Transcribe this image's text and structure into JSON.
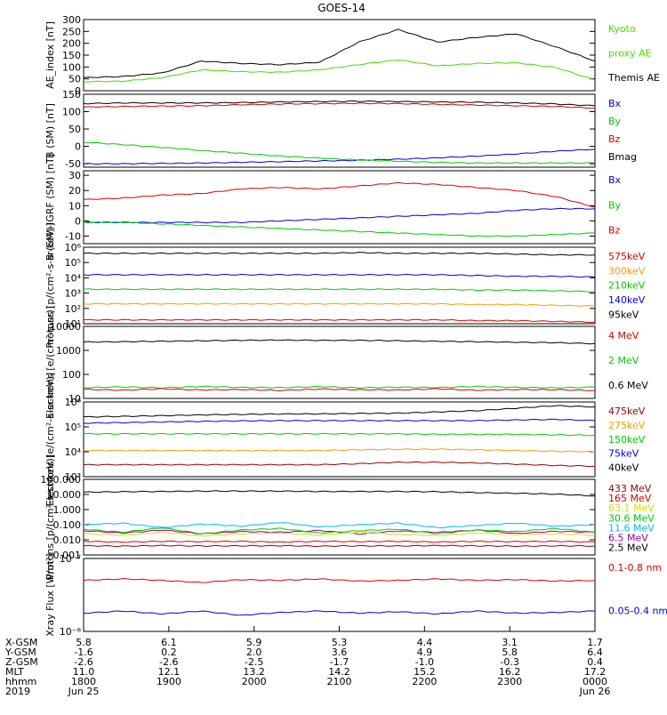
{
  "title": "GOES-14",
  "time_axis": {
    "ticks": [
      "1800",
      "1900",
      "2000",
      "2100",
      "2200",
      "2300",
      "0000"
    ],
    "start_date": "Jun 25",
    "end_date": "Jun 26",
    "year": "2019",
    "row_labels": [
      "X-GSM",
      "Y-GSM",
      "Z-GSM",
      "MLT",
      "hhmm",
      "2019"
    ],
    "ephemeris": {
      "X-GSM": [
        "5.8",
        "6.1",
        "5.9",
        "5.3",
        "4.4",
        "3.1",
        "1.7"
      ],
      "Y-GSM": [
        "-1.6",
        "0.2",
        "2.0",
        "3.6",
        "4.9",
        "5.8",
        "6.4"
      ],
      "Z-GSM": [
        "-2.6",
        "-2.6",
        "-2.5",
        "-1.7",
        "-1.0",
        "-0.3",
        "0.4"
      ],
      "MLT": [
        "11.0",
        "12.1",
        "13.2",
        "14.2",
        "15.2",
        "16.2",
        "17.2"
      ]
    }
  },
  "colors": {
    "black": "#000000",
    "green": "#00cc00",
    "red": "#dd0000",
    "blue": "#0000dd",
    "orange": "#ff9900",
    "dark_red": "#990000",
    "yellow": "#dddd00",
    "cyan": "#00bbee",
    "purple": "#990099",
    "proxy_green": "#44dd00"
  },
  "chart_data": [
    {
      "type": "line",
      "id": "ae",
      "ylabel": "AE_index [nT]",
      "ylim": [
        0,
        300
      ],
      "scale": "linear",
      "yticks": [
        "0",
        "50",
        "100",
        "150",
        "200",
        "250",
        "300"
      ],
      "x": [
        "1730",
        "1800",
        "1830",
        "1900",
        "1930",
        "2000",
        "2030",
        "2100",
        "2130",
        "2200",
        "2230",
        "2300",
        "2330",
        "0000"
      ],
      "series": [
        {
          "name": "Themis AE",
          "color": "#000000",
          "values": [
            55,
            60,
            75,
            125,
            115,
            110,
            120,
            205,
            258,
            205,
            225,
            240,
            185,
            125
          ]
        },
        {
          "name": "Kyoto proxy AE",
          "color": "#44dd00",
          "values": [
            38,
            40,
            55,
            88,
            80,
            78,
            88,
            110,
            130,
            105,
            115,
            118,
            98,
            45
          ]
        }
      ],
      "legend": [
        {
          "text": "Kyoto",
          "color": "#44dd00"
        },
        {
          "text": "proxy AE",
          "color": "#44dd00"
        },
        {
          "text": "Themis AE",
          "color": "#000000"
        }
      ]
    },
    {
      "type": "line",
      "id": "bsm",
      "ylabel": "B (SM) [nT]",
      "ylim": [
        -60,
        150
      ],
      "scale": "linear",
      "yticks": [
        "-50",
        "0",
        "50",
        "100",
        "150"
      ],
      "x": [
        "1730",
        "1800",
        "1830",
        "1900",
        "1930",
        "2000",
        "2030",
        "2100",
        "2130",
        "2200",
        "2230",
        "2300",
        "2330",
        "0000"
      ],
      "series": [
        {
          "name": "Bx",
          "color": "#0000dd",
          "values": [
            -50,
            -50,
            -49,
            -48,
            -46,
            -44,
            -42,
            -40,
            -37,
            -33,
            -28,
            -22,
            -14,
            -8
          ]
        },
        {
          "name": "By",
          "color": "#00cc00",
          "values": [
            12,
            5,
            -3,
            -12,
            -20,
            -28,
            -34,
            -39,
            -43,
            -46,
            -48,
            -48,
            -48,
            -48
          ]
        },
        {
          "name": "Bz",
          "color": "#dd0000",
          "values": [
            113,
            115,
            116,
            117,
            120,
            122,
            123,
            124,
            123,
            121,
            119,
            117,
            115,
            110
          ]
        },
        {
          "name": "Bmag",
          "color": "#000000",
          "values": [
            123,
            125,
            125,
            125,
            126,
            128,
            129,
            130,
            129,
            128,
            127,
            125,
            122,
            117
          ]
        }
      ],
      "legend": [
        {
          "text": "Bx",
          "color": "#0000dd"
        },
        {
          "text": "By",
          "color": "#00cc00"
        },
        {
          "text": "Bz",
          "color": "#dd0000"
        },
        {
          "text": "Bmag",
          "color": "#000000"
        }
      ]
    },
    {
      "type": "line",
      "id": "bigrf",
      "ylabel": "B (SM)-IGRF (SM) [nT]",
      "ylim": [
        -15,
        33
      ],
      "scale": "linear",
      "yticks": [
        "-10",
        "0",
        "10",
        "20",
        "30"
      ],
      "x": [
        "1730",
        "1800",
        "1830",
        "1900",
        "1930",
        "2000",
        "2030",
        "2100",
        "2130",
        "2200",
        "2230",
        "2300",
        "2330",
        "0000"
      ],
      "series": [
        {
          "name": "Bx",
          "color": "#0000dd",
          "values": [
            -1,
            -1,
            -1,
            -1,
            -1,
            0,
            1,
            2,
            3,
            4,
            5,
            7,
            8,
            8
          ]
        },
        {
          "name": "By",
          "color": "#00cc00",
          "values": [
            -1,
            -1,
            -2,
            -3,
            -4,
            -5,
            -6,
            -7,
            -8,
            -9,
            -10,
            -10,
            -9,
            -8
          ]
        },
        {
          "name": "Bz",
          "color": "#dd0000",
          "values": [
            14,
            15,
            17,
            18,
            21,
            22,
            21,
            23,
            25,
            24,
            22,
            20,
            16,
            9
          ]
        }
      ],
      "legend": [
        {
          "text": "Bx",
          "color": "#0000dd"
        },
        {
          "text": "By",
          "color": "#00cc00"
        },
        {
          "text": "Bz",
          "color": "#dd0000"
        }
      ]
    },
    {
      "type": "line",
      "id": "protons_kev",
      "ylabel": "Protons [p/(cm²-s-sr-keV)]",
      "ylim": [
        1,
        6
      ],
      "scale": "log",
      "yticks": [
        "10¹",
        "10²",
        "10³",
        "10⁴",
        "10⁵",
        "10⁶"
      ],
      "x": [
        "1730",
        "1800",
        "1830",
        "1900",
        "1930",
        "2000",
        "2030",
        "2100",
        "2130",
        "2200",
        "2230",
        "2300",
        "2330",
        "0000"
      ],
      "series": [
        {
          "name": "95keV",
          "color": "#000000",
          "values": [
            5.6,
            5.6,
            5.6,
            5.6,
            5.6,
            5.6,
            5.6,
            5.65,
            5.6,
            5.6,
            5.6,
            5.55,
            5.5,
            5.5
          ]
        },
        {
          "name": "140keV",
          "color": "#0000dd",
          "values": [
            4.2,
            4.2,
            4.2,
            4.2,
            4.2,
            4.2,
            4.2,
            4.2,
            4.2,
            4.2,
            4.15,
            4.1,
            4.1,
            4.05
          ]
        },
        {
          "name": "210keV",
          "color": "#00cc00",
          "values": [
            3.25,
            3.25,
            3.25,
            3.25,
            3.25,
            3.25,
            3.25,
            3.25,
            3.25,
            3.25,
            3.2,
            3.2,
            3.15,
            3.1
          ]
        },
        {
          "name": "300keV",
          "color": "#ff9900",
          "values": [
            2.3,
            2.3,
            2.3,
            2.3,
            2.3,
            2.3,
            2.3,
            2.3,
            2.3,
            2.3,
            2.25,
            2.25,
            2.2,
            2.15
          ]
        },
        {
          "name": "575keV",
          "color": "#dd0000",
          "values": [
            1.25,
            1.25,
            1.25,
            1.25,
            1.25,
            1.25,
            1.25,
            1.25,
            1.25,
            1.25,
            1.2,
            1.2,
            1.15,
            1.1
          ]
        }
      ],
      "legend": [
        {
          "text": "575keV",
          "color": "#dd0000"
        },
        {
          "text": "300keV",
          "color": "#ff9900"
        },
        {
          "text": "210keV",
          "color": "#00cc00"
        },
        {
          "text": "140keV",
          "color": "#0000dd"
        },
        {
          "text": "95keV",
          "color": "#000000"
        }
      ]
    },
    {
      "type": "line",
      "id": "electrons_mev",
      "ylabel": "Electrons [e/(cm²-s-sr)]",
      "ylim": [
        1,
        4
      ],
      "scale": "log",
      "yticks": [
        "10",
        "100",
        "1000",
        "10000"
      ],
      "x": [
        "1730",
        "1800",
        "1830",
        "1900",
        "1930",
        "2000",
        "2030",
        "2100",
        "2130",
        "2200",
        "2230",
        "2300",
        "2330",
        "0000"
      ],
      "series": [
        {
          "name": "0.6 MeV",
          "color": "#000000",
          "values": [
            3.35,
            3.36,
            3.38,
            3.4,
            3.42,
            3.43,
            3.42,
            3.42,
            3.4,
            3.38,
            3.36,
            3.34,
            3.32,
            3.28
          ]
        },
        {
          "name": "2 MeV",
          "color": "#00cc00",
          "values": [
            1.45,
            1.48,
            1.44,
            1.5,
            1.46,
            1.45,
            1.49,
            1.44,
            1.47,
            1.45,
            1.5,
            1.46,
            1.44,
            1.47
          ]
        },
        {
          "name": "4 MeV",
          "color": "#dd0000",
          "values": [
            1.38,
            1.34,
            1.4,
            1.35,
            1.37,
            1.33,
            1.39,
            1.36,
            1.35,
            1.4,
            1.34,
            1.37,
            1.36,
            1.33
          ]
        }
      ],
      "legend": [
        {
          "text": "4 MeV",
          "color": "#dd0000"
        },
        {
          "text": "2 MeV",
          "color": "#00cc00"
        },
        {
          "text": "0.6 MeV",
          "color": "#000000"
        }
      ]
    },
    {
      "type": "line",
      "id": "electrons_kev",
      "ylabel": "Electrons [e/(cm²-s-sr-keV)]",
      "ylim": [
        3,
        6
      ],
      "scale": "log",
      "yticks": [
        "10³",
        "10⁴",
        "10⁵",
        "10⁶"
      ],
      "x": [
        "1730",
        "1800",
        "1830",
        "1900",
        "1930",
        "2000",
        "2030",
        "2100",
        "2130",
        "2200",
        "2230",
        "2300",
        "2330",
        "0000"
      ],
      "series": [
        {
          "name": "40keV",
          "color": "#000000",
          "values": [
            5.4,
            5.42,
            5.45,
            5.48,
            5.5,
            5.52,
            5.52,
            5.54,
            5.55,
            5.6,
            5.65,
            5.75,
            5.85,
            5.8
          ]
        },
        {
          "name": "75keV",
          "color": "#0000dd",
          "values": [
            5.15,
            5.17,
            5.2,
            5.22,
            5.24,
            5.25,
            5.25,
            5.25,
            5.25,
            5.25,
            5.25,
            5.28,
            5.3,
            5.25
          ]
        },
        {
          "name": "150keV",
          "color": "#00cc00",
          "values": [
            4.72,
            4.72,
            4.72,
            4.72,
            4.72,
            4.72,
            4.72,
            4.72,
            4.72,
            4.7,
            4.7,
            4.7,
            4.68,
            4.66
          ]
        },
        {
          "name": "275keV",
          "color": "#ff9900",
          "values": [
            4.05,
            4.05,
            4.05,
            4.05,
            4.05,
            4.05,
            4.05,
            4.08,
            4.1,
            4.1,
            4.08,
            4.05,
            4.02,
            4.0
          ]
        },
        {
          "name": "475keV",
          "color": "#990000",
          "values": [
            3.48,
            3.48,
            3.48,
            3.48,
            3.48,
            3.48,
            3.48,
            3.52,
            3.58,
            3.58,
            3.55,
            3.5,
            3.45,
            3.42
          ]
        }
      ],
      "legend": [
        {
          "text": "475keV",
          "color": "#990000"
        },
        {
          "text": "275keV",
          "color": "#ff9900"
        },
        {
          "text": "150keV",
          "color": "#00cc00"
        },
        {
          "text": "75keV",
          "color": "#0000dd"
        },
        {
          "text": "40keV",
          "color": "#000000"
        }
      ]
    },
    {
      "type": "line",
      "id": "protons_mev",
      "ylabel": "Protons [p/(cm²-s-sr-keV)]",
      "ylim": [
        -3,
        2
      ],
      "scale": "log",
      "yticks": [
        "0.001",
        "0.010",
        "0.100",
        "1.000",
        "10.000",
        "100.000"
      ],
      "x": [
        "1730",
        "1800",
        "1830",
        "1900",
        "1930",
        "2000",
        "2030",
        "2100",
        "2130",
        "2200",
        "2230",
        "2300",
        "2330",
        "0000"
      ],
      "series": [
        {
          "name": "2.5 MeV",
          "color": "#000000",
          "values": [
            1.15,
            1.18,
            1.2,
            1.22,
            1.22,
            1.22,
            1.2,
            1.2,
            1.2,
            1.18,
            1.12,
            1.08,
            1.02,
            0.9
          ]
        },
        {
          "name": "6.5 MeV",
          "color": "#990099",
          "values": [
            -1.4,
            -1.55,
            -1.35,
            -1.6,
            -1.45,
            -1.5,
            -1.38,
            -1.62,
            -1.42,
            -1.5,
            -1.36,
            -1.58,
            -1.44,
            -1.5
          ]
        },
        {
          "name": "11.6 MeV",
          "color": "#00bbee",
          "values": [
            -1.0,
            -0.9,
            -1.2,
            -0.95,
            -1.1,
            -0.85,
            -1.15,
            -1.0,
            -0.9,
            -1.2,
            -1.05,
            -0.9,
            -1.1,
            -1.0
          ]
        },
        {
          "name": "30.6 MeV",
          "color": "#00cc00",
          "values": [
            -1.3,
            -1.5,
            -1.2,
            -1.6,
            -1.35,
            -1.25,
            -1.55,
            -1.4,
            -1.3,
            -1.6,
            -1.35,
            -1.45,
            -1.25,
            -1.5
          ]
        },
        {
          "name": "63.1 MeV",
          "color": "#dddd00",
          "values": [
            -1.6,
            -1.7,
            -1.5,
            -1.75,
            -1.6,
            -1.55,
            -1.7,
            -1.5,
            -1.65,
            -1.72,
            -1.55,
            -1.65,
            -1.6,
            -1.7
          ]
        },
        {
          "name": "165 MeV",
          "color": "#dd0000",
          "values": [
            -2.1,
            -2.15,
            -2.1,
            -2.12,
            -2.1,
            -2.15,
            -2.1,
            -2.12,
            -2.1,
            -2.15,
            -2.1,
            -2.12,
            -2.1,
            -2.15
          ]
        },
        {
          "name": "433 MeV",
          "color": "#990000",
          "values": [
            -2.4,
            -2.42,
            -2.38,
            -2.41,
            -2.4,
            -2.39,
            -2.42,
            -2.4,
            -2.41,
            -2.38,
            -2.4,
            -2.42,
            -2.4,
            -2.41
          ]
        }
      ],
      "legend": [
        {
          "text": "433 MeV",
          "color": "#990000"
        },
        {
          "text": "165 MeV",
          "color": "#dd0000"
        },
        {
          "text": "63.1 MeV",
          "color": "#dddd00"
        },
        {
          "text": "30.6 MeV",
          "color": "#00cc00"
        },
        {
          "text": "11.6 MeV",
          "color": "#00bbee"
        },
        {
          "text": "6.5 MeV",
          "color": "#990099"
        },
        {
          "text": "2.5 MeV",
          "color": "#000000"
        }
      ]
    },
    {
      "type": "line",
      "id": "xray",
      "ylabel": "Xray Flux [W/m²]",
      "ylim": [
        -8,
        -7
      ],
      "scale": "log",
      "yticks": [
        "10⁻⁸",
        "10⁻⁷"
      ],
      "x": [
        "1730",
        "1800",
        "1830",
        "1900",
        "1930",
        "2000",
        "2030",
        "2100",
        "2130",
        "2200",
        "2230",
        "2300",
        "2330",
        "0000"
      ],
      "series": [
        {
          "name": "0.1-0.8 nm",
          "color": "#dd0000",
          "values": [
            -7.3,
            -7.28,
            -7.3,
            -7.33,
            -7.29,
            -7.3,
            -7.28,
            -7.31,
            -7.3,
            -7.28,
            -7.3,
            -7.29,
            -7.31,
            -7.3
          ]
        },
        {
          "name": "0.05-0.4 nm",
          "color": "#0000dd",
          "values": [
            -7.75,
            -7.72,
            -7.76,
            -7.72,
            -7.78,
            -7.74,
            -7.72,
            -7.75,
            -7.73,
            -7.76,
            -7.72,
            -7.75,
            -7.74,
            -7.72
          ]
        }
      ],
      "legend": [
        {
          "text": "0.1-0.8 nm",
          "color": "#dd0000"
        },
        {
          "text": "0.05-0.4 nm",
          "color": "#0000dd"
        }
      ]
    }
  ]
}
